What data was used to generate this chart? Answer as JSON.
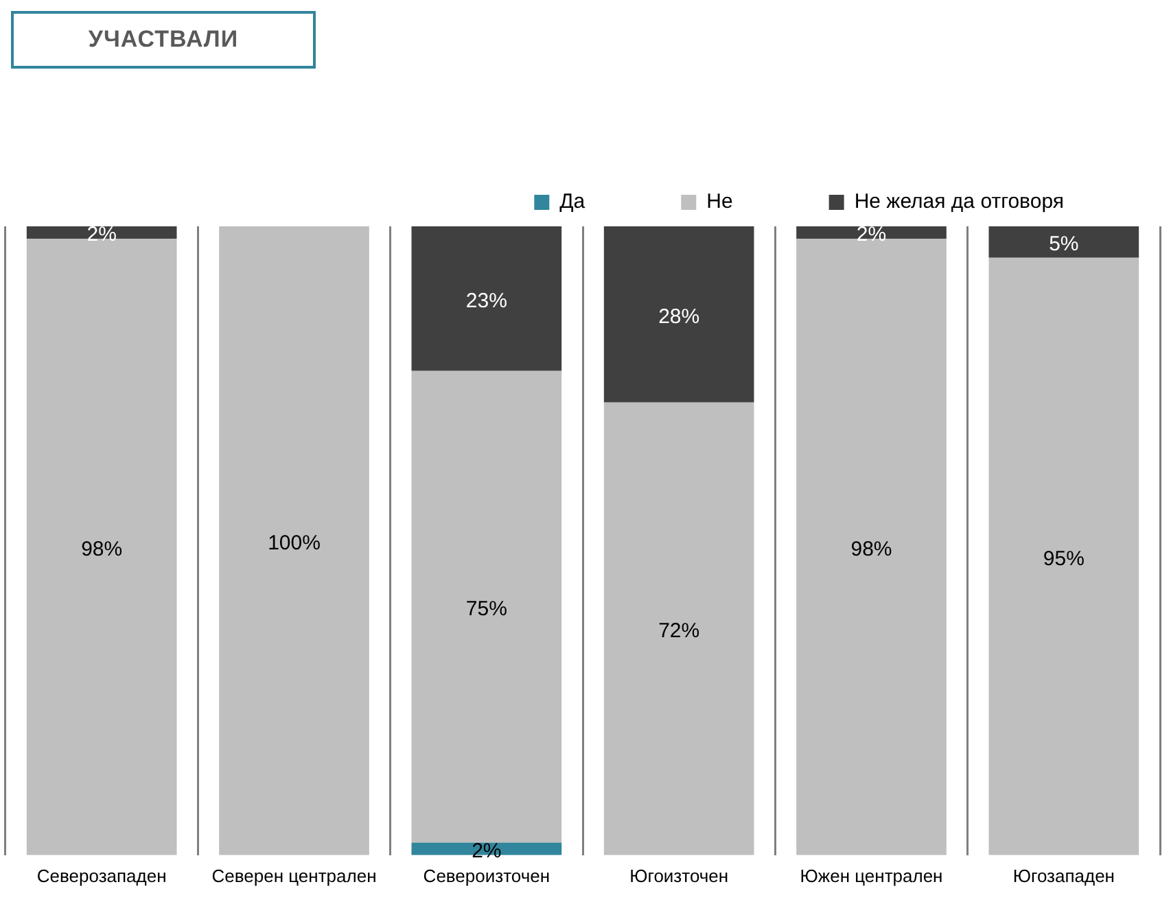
{
  "chart_data": {
    "type": "bar",
    "title": "УЧАСТВАЛИ",
    "stacked": true,
    "grid": "x",
    "legend": "top",
    "categories": [
      "Северозападен",
      "Северен централен",
      "Североизточен",
      "Югоизточен",
      "Южен централен",
      "Югозападен"
    ],
    "series": [
      {
        "name": "Да",
        "color": "#31859c",
        "values": [
          0,
          0,
          2,
          0,
          0,
          0
        ],
        "value_labels": [
          null,
          null,
          "2%",
          null,
          null,
          null
        ]
      },
      {
        "name": "Не",
        "color": "#bfbfbf",
        "values": [
          98,
          100,
          75,
          72,
          98,
          95
        ],
        "value_labels": [
          "98%",
          "100%",
          "75%",
          "72%",
          "98%",
          "95%"
        ]
      },
      {
        "name": "Не желая да отговоря",
        "color": "#404040",
        "values": [
          2,
          0,
          23,
          28,
          2,
          5
        ],
        "value_labels": [
          "2%",
          null,
          "23%",
          "28%",
          "2%",
          "5%"
        ]
      }
    ]
  }
}
